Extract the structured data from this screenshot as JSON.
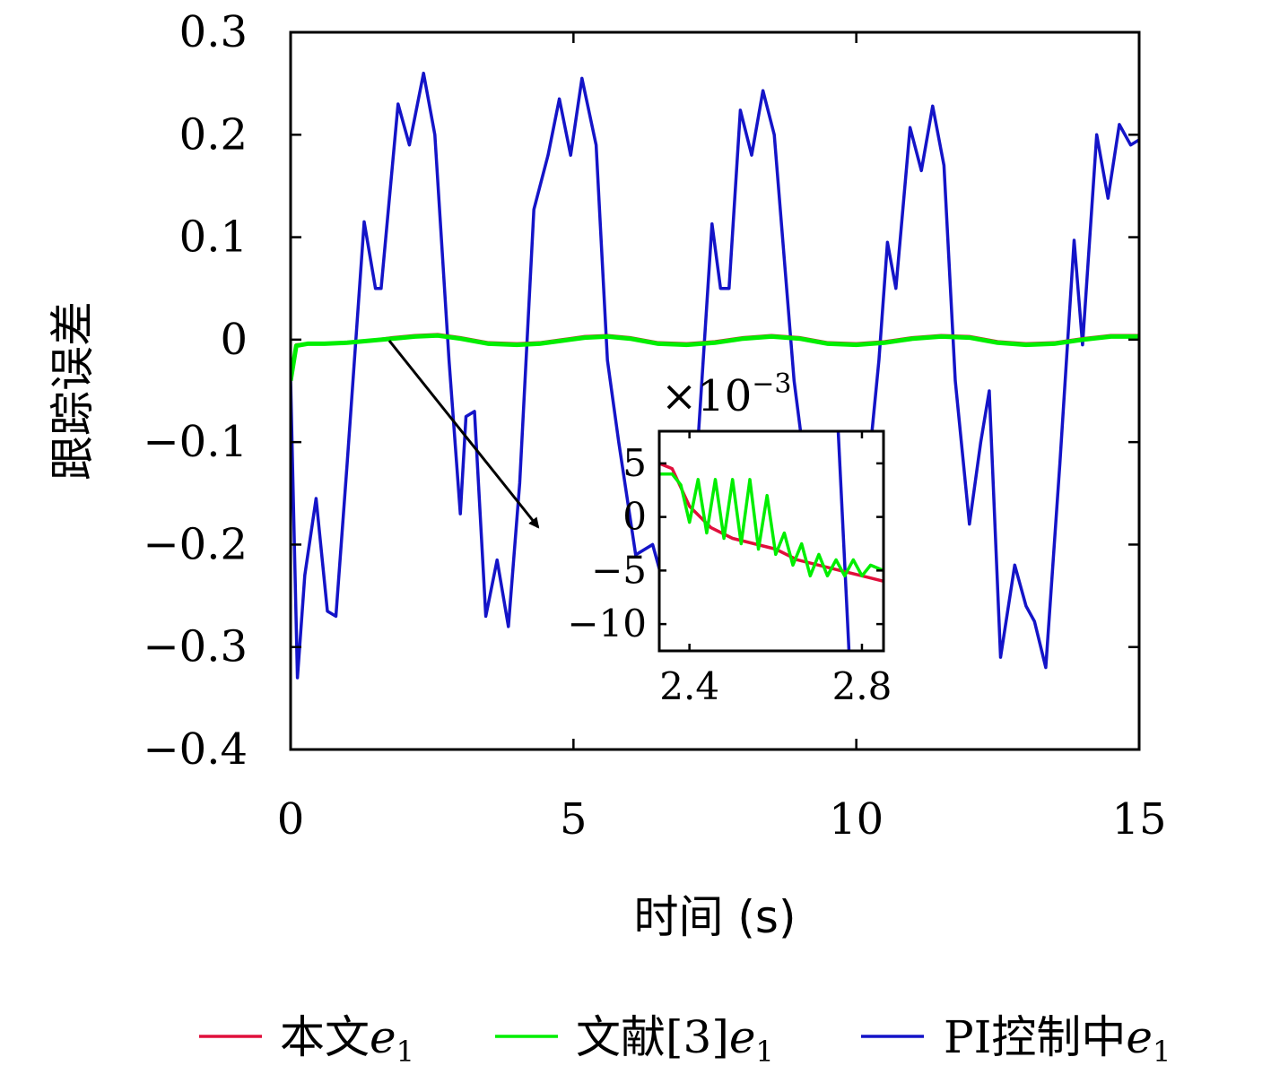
{
  "chart_data": {
    "type": "line",
    "xlabel": "时间 (s)",
    "ylabel": "跟踪误差",
    "xlim": [
      0,
      15
    ],
    "ylim": [
      -0.4,
      0.3
    ],
    "xticks": [
      "0",
      "5",
      "10",
      "15"
    ],
    "yticks": [
      "0.3",
      "0.2",
      "0.1",
      "0",
      "−0.1",
      "−0.2",
      "−0.3",
      "−0.4"
    ],
    "legend_position": "bottom",
    "series": [
      {
        "name": "本文",
        "subscript_var": "e",
        "subscript": "1",
        "color": "#e0103c",
        "x": [
          0,
          0.1,
          0.3,
          0.6,
          1.0,
          1.4,
          1.8,
          2.2,
          2.6,
          3.0,
          3.5,
          4.0,
          4.4,
          4.8,
          5.2,
          5.6,
          6.0,
          6.5,
          7.0,
          7.5,
          8.0,
          8.5,
          9.0,
          9.5,
          10.0,
          10.5,
          11.0,
          11.5,
          12.0,
          12.5,
          13.0,
          13.5,
          14.0,
          14.5,
          15.0
        ],
        "y": [
          -0.04,
          -0.005,
          -0.004,
          -0.004,
          -0.003,
          -0.001,
          0.002,
          0.004,
          0.005,
          0.002,
          -0.003,
          -0.004,
          -0.003,
          0.0,
          0.003,
          0.004,
          0.002,
          -0.003,
          -0.004,
          -0.002,
          0.002,
          0.004,
          0.002,
          -0.003,
          -0.004,
          -0.002,
          0.002,
          0.004,
          0.003,
          -0.002,
          -0.004,
          -0.003,
          0.001,
          0.004,
          0.004
        ]
      },
      {
        "name": "文献[3]",
        "subscript_var": "e",
        "subscript": "1",
        "color": "#00ee00",
        "x": [
          0,
          0.1,
          0.3,
          0.6,
          1.0,
          1.4,
          1.8,
          2.2,
          2.6,
          3.0,
          3.5,
          4.0,
          4.4,
          4.8,
          5.2,
          5.6,
          6.0,
          6.5,
          7.0,
          7.5,
          8.0,
          8.5,
          9.0,
          9.5,
          10.0,
          10.5,
          11.0,
          11.5,
          12.0,
          12.5,
          13.0,
          13.5,
          14.0,
          14.5,
          15.0
        ],
        "y": [
          -0.04,
          -0.006,
          -0.004,
          -0.004,
          -0.003,
          -0.001,
          0.001,
          0.003,
          0.004,
          0.001,
          -0.004,
          -0.005,
          -0.004,
          -0.001,
          0.002,
          0.003,
          0.001,
          -0.004,
          -0.005,
          -0.003,
          0.001,
          0.003,
          0.001,
          -0.004,
          -0.005,
          -0.003,
          0.001,
          0.003,
          0.002,
          -0.003,
          -0.005,
          -0.004,
          0.0,
          0.003,
          0.003
        ]
      },
      {
        "name": "PI控制中",
        "subscript_var": "e",
        "subscript": "1",
        "color": "#1414c8",
        "x": [
          0,
          0.12,
          0.25,
          0.45,
          0.65,
          0.8,
          1.0,
          1.3,
          1.5,
          1.6,
          1.9,
          2.1,
          2.35,
          2.55,
          2.8,
          3.0,
          3.1,
          3.25,
          3.45,
          3.65,
          3.85,
          4.05,
          4.3,
          4.55,
          4.75,
          4.95,
          5.15,
          5.4,
          5.6,
          5.8,
          6.1,
          6.4,
          6.7,
          6.95,
          7.2,
          7.45,
          7.6,
          7.75,
          7.95,
          8.15,
          8.35,
          8.55,
          8.9,
          9.2,
          9.5,
          9.8,
          10.1,
          10.4,
          10.55,
          10.7,
          10.95,
          11.15,
          11.35,
          11.55,
          11.75,
          12.0,
          12.2,
          12.35,
          12.55,
          12.8,
          13.0,
          13.15,
          13.35,
          13.6,
          13.85,
          14.0,
          14.25,
          14.45,
          14.65,
          14.85,
          15.0
        ],
        "y": [
          -0.04,
          -0.33,
          -0.23,
          -0.155,
          -0.265,
          -0.27,
          -0.12,
          0.115,
          0.05,
          0.05,
          0.23,
          0.19,
          0.26,
          0.2,
          -0.02,
          -0.17,
          -0.075,
          -0.07,
          -0.27,
          -0.215,
          -0.28,
          -0.14,
          0.127,
          0.18,
          0.235,
          0.18,
          0.255,
          0.19,
          -0.02,
          -0.1,
          -0.21,
          -0.2,
          -0.26,
          -0.28,
          -0.1,
          0.113,
          0.05,
          0.05,
          0.224,
          0.18,
          0.243,
          0.2,
          -0.04,
          -0.17,
          -0.25,
          -0.22,
          -0.19,
          -0.02,
          0.095,
          0.05,
          0.207,
          0.165,
          0.228,
          0.17,
          -0.04,
          -0.18,
          -0.1,
          -0.05,
          -0.31,
          -0.22,
          -0.26,
          -0.275,
          -0.32,
          -0.12,
          0.097,
          -0.005,
          0.2,
          0.138,
          0.21,
          0.19,
          0.195
        ]
      }
    ],
    "inset": {
      "scale_label": "×10",
      "scale_exponent": "−3",
      "xlim": [
        2.33,
        2.85
      ],
      "ylim": [
        -12.5,
        8
      ],
      "xticks": [
        "2.4",
        "2.8"
      ],
      "yticks": [
        "5",
        "0",
        "−5",
        "−10"
      ],
      "red_x": [
        2.33,
        2.36,
        2.4,
        2.45,
        2.5,
        2.55,
        2.6,
        2.65,
        2.7,
        2.75,
        2.8,
        2.85
      ],
      "red_y": [
        5,
        4.5,
        1.0,
        -1.0,
        -2.0,
        -2.5,
        -3.0,
        -4.0,
        -4.5,
        -5.0,
        -5.5,
        -6.0
      ],
      "green_x": [
        2.33,
        2.36,
        2.38,
        2.4,
        2.42,
        2.44,
        2.46,
        2.48,
        2.5,
        2.52,
        2.54,
        2.56,
        2.58,
        2.6,
        2.62,
        2.64,
        2.66,
        2.68,
        2.7,
        2.72,
        2.74,
        2.76,
        2.78,
        2.8,
        2.82,
        2.85
      ],
      "green_y": [
        4.0,
        4.0,
        3.0,
        -0.5,
        3.5,
        -1.5,
        3.5,
        -2.0,
        3.5,
        -2.5,
        3.5,
        -3.0,
        2.0,
        -3.5,
        -1.5,
        -4.5,
        -2.5,
        -5.5,
        -3.5,
        -5.5,
        -4.0,
        -5.5,
        -4.0,
        -5.5,
        -4.5,
        -5.0
      ],
      "blue_x": [
        2.745,
        2.77
      ],
      "blue_y": [
        8,
        -12.5
      ]
    },
    "annotation": "arrow from main curve near x≈1.8 to inset"
  }
}
